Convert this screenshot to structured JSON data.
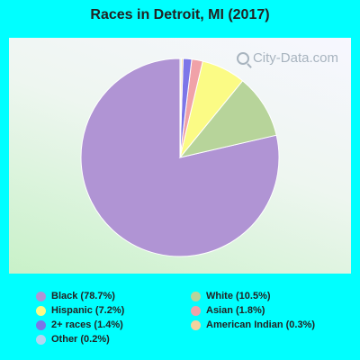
{
  "chart_data": {
    "type": "pie",
    "title": "Races in Detroit, MI (2017)",
    "watermark": "City-Data.com",
    "slices": [
      {
        "label": "Black (78.7%)",
        "value": 78.7,
        "color": "#b094d4"
      },
      {
        "label": "White (10.5%)",
        "value": 10.5,
        "color": "#b7d49a"
      },
      {
        "label": "Hispanic (7.2%)",
        "value": 7.2,
        "color": "#fbfb85"
      },
      {
        "label": "Asian (1.8%)",
        "value": 1.8,
        "color": "#f0a2a8"
      },
      {
        "label": "2+ races (1.4%)",
        "value": 1.4,
        "color": "#7c76e8"
      },
      {
        "label": "American Indian (0.3%)",
        "value": 0.3,
        "color": "#f2d29e"
      },
      {
        "label": "Other (0.2%)",
        "value": 0.2,
        "color": "#b2d6f2"
      }
    ],
    "legend_placement": "bottom"
  }
}
